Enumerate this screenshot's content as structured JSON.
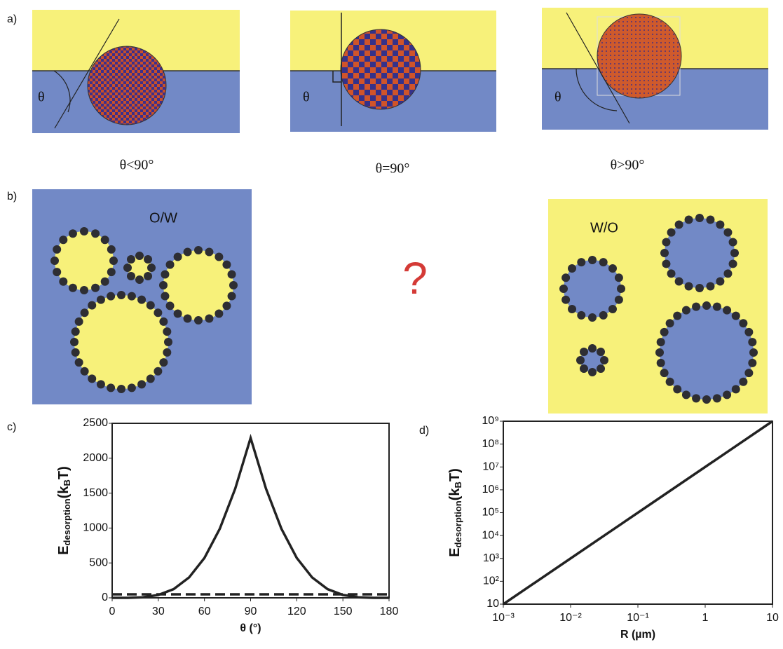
{
  "panels": {
    "a": {
      "label": "a)",
      "angle_symbol": "θ",
      "cases": [
        "θ<90°",
        "θ=90°",
        "θ>90°"
      ]
    },
    "b": {
      "label": "b)",
      "left": "O/W",
      "right": "W/O",
      "question": "?"
    }
  },
  "chart_data": [
    {
      "type": "line",
      "label": "c)",
      "xlabel": "θ (°)",
      "ylabel": [
        "E",
        "desorption",
        "(k",
        "B",
        "T)"
      ],
      "x": [
        0,
        10,
        20,
        30,
        40,
        50,
        60,
        70,
        80,
        90,
        100,
        110,
        120,
        130,
        140,
        150,
        160,
        170,
        180
      ],
      "series": [
        {
          "color": "#222222",
          "style": "solid",
          "values": [
            0,
            0.5,
            8,
            41,
            125,
            292,
            572,
            991,
            1564,
            2290,
            1564,
            991,
            572,
            292,
            125,
            41,
            8,
            0.5,
            0
          ]
        },
        {
          "color": "#222222",
          "style": "dashed",
          "values": [
            50,
            50,
            50,
            50,
            50,
            50,
            50,
            50,
            50,
            50,
            50,
            50,
            50,
            50,
            50,
            50,
            50,
            50,
            50
          ]
        }
      ],
      "xlim": [
        0,
        180
      ],
      "xticks": [
        0,
        30,
        60,
        90,
        120,
        150,
        180
      ],
      "ylim": [
        0,
        2500
      ],
      "yticks": [
        0,
        500,
        1000,
        1500,
        2000,
        2500
      ]
    },
    {
      "type": "line",
      "label": "d)",
      "xlabel": "R (µm)",
      "ylabel": [
        "E",
        "desorption",
        "(k",
        "B",
        "T)"
      ],
      "xscale": "log",
      "yscale": "log",
      "x": [
        0.001,
        0.01,
        0.1,
        1,
        10
      ],
      "series": [
        {
          "color": "#222222",
          "style": "solid",
          "values": [
            10,
            1000,
            100000,
            10000000,
            1000000000
          ]
        }
      ],
      "xlim": [
        0.001,
        10
      ],
      "xticks": [
        {
          "value": 0.001,
          "label": "10⁻³"
        },
        {
          "value": 0.01,
          "label": "10⁻²"
        },
        {
          "value": 0.1,
          "label": "10⁻¹"
        },
        1,
        10
      ],
      "ylim": [
        10,
        1000000000
      ],
      "yticks": [
        10,
        {
          "value": 100,
          "label": "10²"
        },
        {
          "value": 1000,
          "label": "10³"
        },
        {
          "value": 10000,
          "label": "10⁴"
        },
        {
          "value": 100000,
          "label": "10⁵"
        },
        {
          "value": 1000000,
          "label": "10⁶"
        },
        {
          "value": 10000000,
          "label": "10⁷"
        },
        {
          "value": 100000000,
          "label": "10⁸"
        },
        {
          "value": 1000000000,
          "label": "10⁹"
        }
      ]
    }
  ]
}
